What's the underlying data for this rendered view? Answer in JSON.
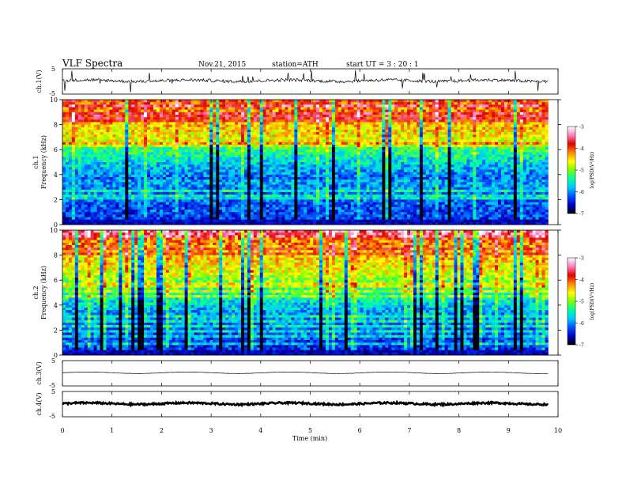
{
  "header": {
    "title": "VLF  Spectra",
    "date": "Nov.21, 2015",
    "station": "station=ATH",
    "start": "start  UT  =   3  : 20 : 1"
  },
  "chart_data": [
    {
      "type": "line",
      "panel": "ch1-waveform",
      "ylabel": "ch.1(V)",
      "ylim": [
        -5,
        5
      ],
      "yticks": [
        "5",
        "-5"
      ],
      "description_values": {
        "baseline": 0.3,
        "noise_amplitude": 0.6
      }
    },
    {
      "type": "heatmap",
      "panel": "ch1-spectrogram",
      "ylabel_line1": "ch.1",
      "ylabel_line2": "Frequency  (kHz)",
      "ylim": [
        0,
        10
      ],
      "yticks": [
        "0",
        "2",
        "4",
        "6",
        "8",
        "10"
      ],
      "colorbar": {
        "label": "log(PSD(V²/Hz)",
        "range": [
          -7,
          -3
        ],
        "ticks": [
          "-3",
          "-4",
          "-5",
          "-6",
          "-7"
        ]
      }
    },
    {
      "type": "heatmap",
      "panel": "ch2-spectrogram",
      "ylabel_line1": "ch.2",
      "ylabel_line2": "Frequency  (kHz)",
      "ylim": [
        0,
        10
      ],
      "yticks": [
        "0",
        "2",
        "4",
        "6",
        "8",
        "10"
      ],
      "colorbar": {
        "label": "log(PSD(V²/Hz)",
        "range": [
          -7,
          -3
        ],
        "ticks": [
          "-3",
          "-4",
          "-5",
          "-6",
          "-7"
        ]
      }
    },
    {
      "type": "line",
      "panel": "ch3-waveform",
      "ylabel": "ch.3(V)",
      "ylim": [
        -5,
        5
      ],
      "yticks": [
        "5",
        "-5"
      ],
      "description_values": {
        "baseline": 0.2,
        "noise_amplitude": 0.05
      }
    },
    {
      "type": "line",
      "panel": "ch4-waveform",
      "ylabel": "ch.4(V)",
      "ylim": [
        -5,
        5
      ],
      "yticks": [
        "5",
        "-5"
      ],
      "description_values": {
        "baseline": 0.2,
        "noise_amplitude": 0.35
      }
    }
  ],
  "xaxis": {
    "label": "Time  (min)",
    "range": [
      0,
      10
    ],
    "ticks": [
      "0",
      "1",
      "2",
      "3",
      "4",
      "5",
      "6",
      "7",
      "8",
      "9",
      "10"
    ],
    "data_end": 9.8
  },
  "colors": {
    "colormap": [
      "#000000",
      "#0000c8",
      "#0050ff",
      "#00c8ff",
      "#00ffa0",
      "#7cff00",
      "#ffff00",
      "#ff8800",
      "#e00000",
      "#ff80c0",
      "#ffffff"
    ]
  }
}
